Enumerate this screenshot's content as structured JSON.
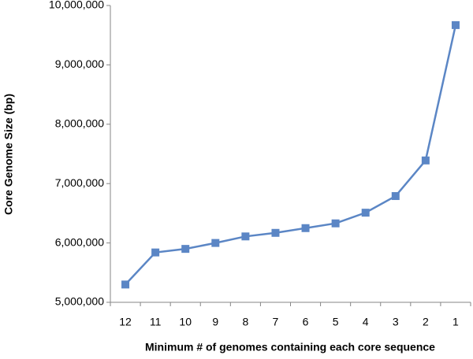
{
  "chart_data": {
    "type": "line",
    "x_label": "Minimum # of genomes containing each core sequence",
    "y_label": "Core Genome Size (bp)",
    "categories": [
      "12",
      "11",
      "10",
      "9",
      "8",
      "7",
      "6",
      "5",
      "4",
      "3",
      "2",
      "1"
    ],
    "values": [
      5300000,
      5840000,
      5900000,
      6000000,
      6110000,
      6170000,
      6250000,
      6330000,
      6510000,
      6790000,
      7390000,
      9670000
    ],
    "color": "#5b86c5",
    "ylim": [
      5000000,
      10000000
    ],
    "yticks": [
      {
        "value": 5000000,
        "label": "5,000,000"
      },
      {
        "value": 6000000,
        "label": "6,000,000"
      },
      {
        "value": 7000000,
        "label": "7,000,000"
      },
      {
        "value": 8000000,
        "label": "8,000,000"
      },
      {
        "value": 9000000,
        "label": "9,000,000"
      },
      {
        "value": 10000000,
        "label": "10,000,000"
      }
    ],
    "grid": false
  }
}
